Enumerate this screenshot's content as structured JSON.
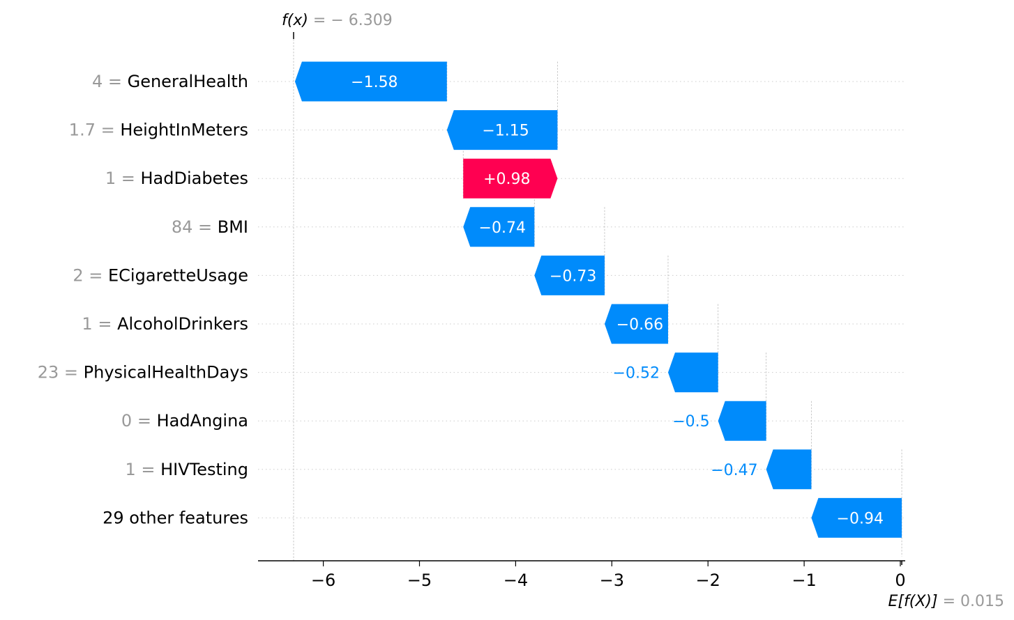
{
  "chart_data": {
    "type": "waterfall",
    "title": "",
    "xlabel": "",
    "ylabel": "",
    "xlim": [
      -6.7,
      0.07
    ],
    "xticks": [
      -6,
      -5,
      -4,
      -3,
      -2,
      -1,
      0
    ],
    "xtick_labels": [
      "−6",
      "−5",
      "−4",
      "−3",
      "−2",
      "−1",
      "0"
    ],
    "fx": {
      "prefix": "f(x)",
      "equals": " = − 6.309",
      "value": -6.309
    },
    "efx": {
      "prefix": "E[f(X)]",
      "equals": " = 0.015",
      "value": 0.015
    },
    "rows": [
      {
        "value_text": "4 = ",
        "feature": "GeneralHealth",
        "shap": -1.58,
        "label": "−1.58"
      },
      {
        "value_text": "1.7 = ",
        "feature": "HeightInMeters",
        "shap": -1.15,
        "label": "−1.15"
      },
      {
        "value_text": "1 = ",
        "feature": "HadDiabetes",
        "shap": 0.98,
        "label": "+0.98"
      },
      {
        "value_text": "84 = ",
        "feature": "BMI",
        "shap": -0.74,
        "label": "−0.74"
      },
      {
        "value_text": "2 = ",
        "feature": "ECigaretteUsage",
        "shap": -0.73,
        "label": "−0.73"
      },
      {
        "value_text": "1 = ",
        "feature": "AlcoholDrinkers",
        "shap": -0.66,
        "label": "−0.66"
      },
      {
        "value_text": "23 = ",
        "feature": "PhysicalHealthDays",
        "shap": -0.52,
        "label": "−0.52"
      },
      {
        "value_text": "0 = ",
        "feature": "HadAngina",
        "shap": -0.5,
        "label": "−0.5"
      },
      {
        "value_text": "1 = ",
        "feature": "HIVTesting",
        "shap": -0.47,
        "label": "−0.47"
      },
      {
        "value_text": "",
        "feature": "29 other features",
        "shap": -0.94,
        "label": "−0.94"
      }
    ],
    "colors": {
      "positive": "#ff0051",
      "negative": "#008bfb",
      "value_text": "#999999",
      "feature_text": "#000000",
      "grid": "#cccccc",
      "axis": "#000000"
    }
  }
}
